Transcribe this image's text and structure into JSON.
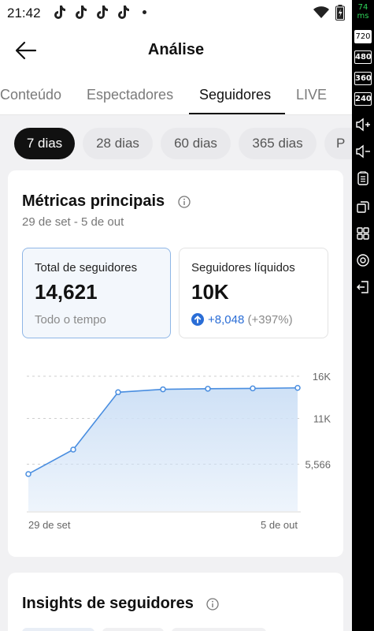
{
  "status": {
    "time": "21:42"
  },
  "side_rail": {
    "latency_value": "74",
    "latency_unit": "ms",
    "resolutions": [
      "720",
      "480",
      "360",
      "240"
    ]
  },
  "header": {
    "title": "Análise"
  },
  "tabs": [
    {
      "label": "Conteúdo"
    },
    {
      "label": "Espectadores"
    },
    {
      "label": "Seguidores"
    },
    {
      "label": "LIVE"
    }
  ],
  "periods": [
    {
      "label": "7 dias"
    },
    {
      "label": "28 dias"
    },
    {
      "label": "60 dias"
    },
    {
      "label": "365 dias"
    },
    {
      "label": "P"
    }
  ],
  "metrics_card": {
    "title": "Métricas principais",
    "date_range": "29 de set - 5 de out",
    "total": {
      "label": "Total de seguidores",
      "value": "14,621",
      "sub": "Todo o tempo"
    },
    "net": {
      "label": "Seguidores líquidos",
      "value": "10K",
      "change": "+8,048",
      "change_pct": "(+397%)"
    }
  },
  "chart_data": {
    "type": "area",
    "x_labels": [
      "29 de set",
      "5 de out"
    ],
    "y_ticks": [
      {
        "value": 16000,
        "label": "16K"
      },
      {
        "value": 11000,
        "label": "11K"
      },
      {
        "value": 5566,
        "label": "5,566"
      }
    ],
    "ylim": [
      0,
      16000
    ],
    "series": [
      {
        "values": [
          4400,
          7300,
          14100,
          14450,
          14520,
          14560,
          14621
        ]
      }
    ],
    "grid": true,
    "colors": {
      "line": "#4a8ee0",
      "fill": "#cfe1f6",
      "grid": "#cfcfcf"
    }
  },
  "insights_card": {
    "title": "Insights de seguidores"
  }
}
